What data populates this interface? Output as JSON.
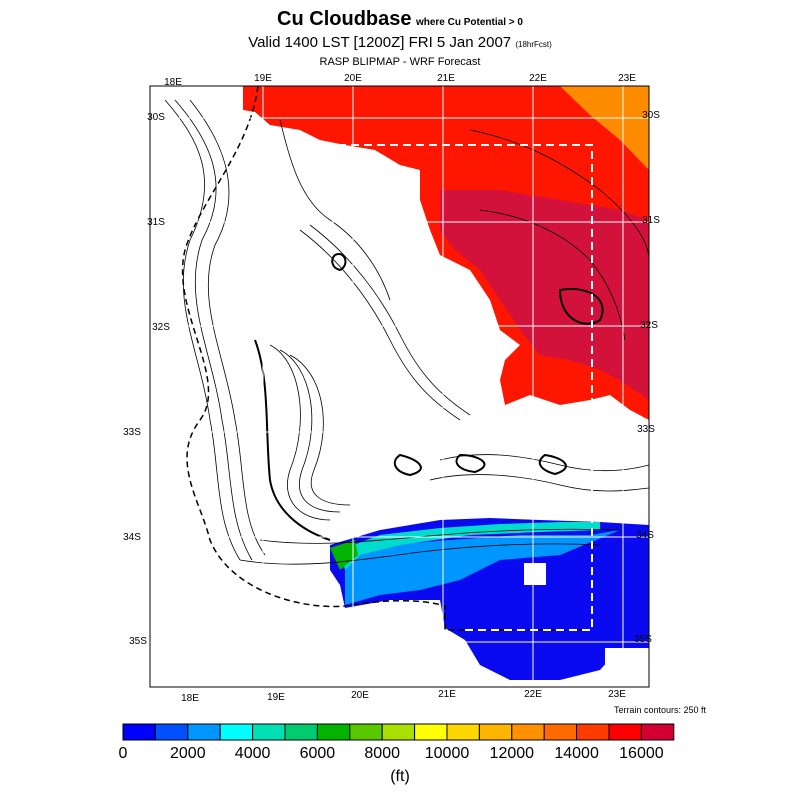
{
  "header": {
    "title": "Cu Cloudbase",
    "subtitle": "where Cu Potential > 0",
    "valid": "Valid 1400 LST [1200Z] FRI 5 Jan 2007",
    "fcst": "(18hrFcst)",
    "model": "RASP BLIPMAP - WRF Forecast"
  },
  "map": {
    "top_lon_labels": [
      "18E",
      "19E",
      "20E",
      "21E",
      "22E",
      "23E"
    ],
    "bottom_lon_labels": [
      "18E",
      "19E",
      "20E",
      "21E",
      "22E",
      "23E"
    ],
    "left_lat_labels": [
      "30S",
      "31S",
      "32S",
      "33S",
      "34S",
      "35S"
    ],
    "right_lat_labels": [
      "30S",
      "31S",
      "32S",
      "33S",
      "34S",
      "35S"
    ],
    "terrain_note": "Terrain contours: 250 ft"
  },
  "colorbar": {
    "colors": [
      "#0000ff",
      "#0050ff",
      "#0096ff",
      "#00ffff",
      "#00e0b4",
      "#00cc6e",
      "#00b400",
      "#5ac800",
      "#aae000",
      "#ffff00",
      "#ffd600",
      "#ffb400",
      "#ff9000",
      "#ff6a00",
      "#ff3c00",
      "#ff0000",
      "#d20032"
    ],
    "tick_labels": [
      "0",
      "2000",
      "4000",
      "6000",
      "8000",
      "10000",
      "12000",
      "14000",
      "16000"
    ],
    "unit": "(ft)"
  }
}
